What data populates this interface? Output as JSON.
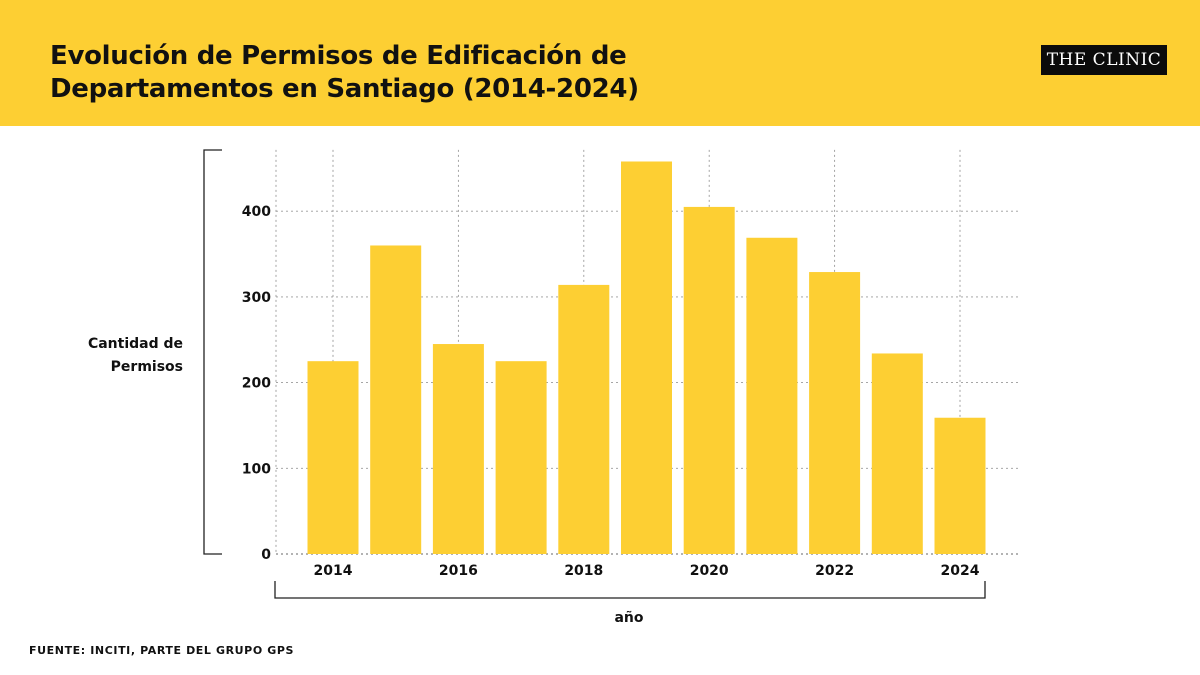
{
  "header": {
    "title": "Evolución de Permisos de Edificación de Departamentos en Santiago (2014-2024)",
    "logo_text": "THE CLINIC"
  },
  "colors": {
    "header_bg": "#fdcf33",
    "bar": "#fdcf33",
    "grid": "#9a9a9a",
    "text": "#111111",
    "logo_bg": "#0b0b0b"
  },
  "chart_data": {
    "type": "bar",
    "title": "Evolución de Permisos de Edificación de Departamentos en Santiago (2014-2024)",
    "xlabel": "año",
    "ylabel": "Cantidad de Permisos",
    "categories": [
      "2014",
      "2015",
      "2016",
      "2017",
      "2018",
      "2019",
      "2020",
      "2021",
      "2022",
      "2023",
      "2024"
    ],
    "values": [
      225,
      360,
      245,
      225,
      314,
      458,
      405,
      369,
      329,
      234,
      159
    ],
    "x_tick_labels": [
      "2014",
      "2016",
      "2018",
      "2020",
      "2022",
      "2024"
    ],
    "y_ticks": [
      0,
      100,
      200,
      300,
      400
    ],
    "ylim": [
      0,
      475
    ],
    "grid": true,
    "grid_style": "dotted",
    "legend": "none"
  },
  "source": "FUENTE: INCITI, PARTE DEL GRUPO GPS"
}
